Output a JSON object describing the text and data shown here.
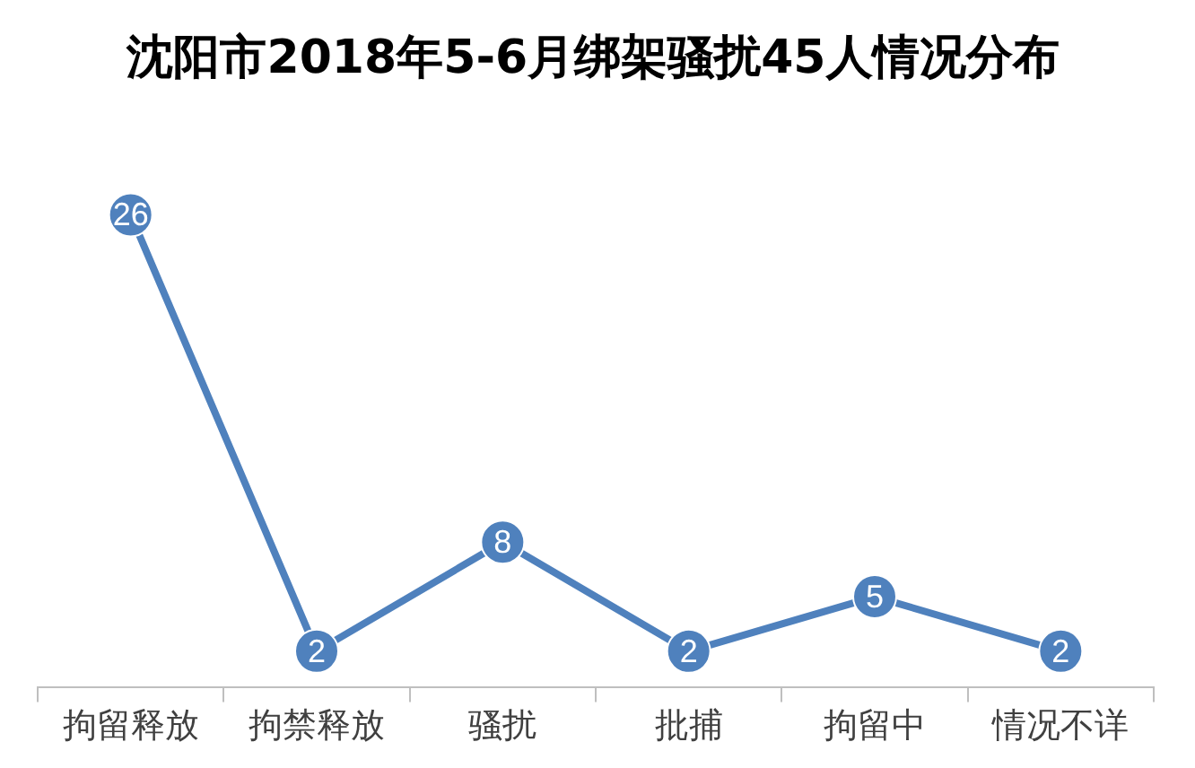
{
  "chart_data": {
    "type": "line",
    "title": "沈阳市2018年5-6月绑架骚扰45人情况分布",
    "categories": [
      "拘留释放",
      "拘禁释放",
      "骚扰",
      "批捕",
      "拘留中",
      "情况不详"
    ],
    "series": [
      {
        "color": "#4f81bd",
        "values": [
          26,
          2,
          8,
          2,
          5,
          2
        ]
      }
    ],
    "data_labels": true,
    "marker": "circle",
    "legend": false,
    "grid": false,
    "tick_labels": "x"
  }
}
